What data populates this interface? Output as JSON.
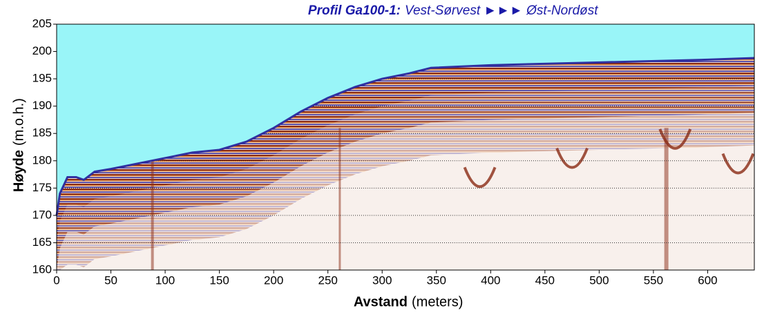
{
  "chart_data": {
    "type": "area",
    "title_parts": [
      "Profil Ga100-1:",
      "Vest-Sørvest ►►► Øst-Nordøst"
    ],
    "ylabel_parts": [
      "Høyde",
      "(m.o.h.)"
    ],
    "xlabel_parts": [
      "Avstand",
      "(meters)"
    ],
    "x": [
      0,
      3,
      10,
      18,
      25,
      35,
      50,
      75,
      100,
      125,
      150,
      175,
      200,
      225,
      250,
      275,
      300,
      325,
      345,
      400,
      500,
      600,
      643
    ],
    "values": [
      170,
      174,
      177,
      177,
      176.5,
      178,
      178.5,
      179.5,
      180.5,
      181.5,
      182,
      183.5,
      186,
      189,
      191.5,
      193.5,
      195,
      196,
      197,
      197.5,
      198,
      198.5,
      198.8
    ],
    "color": "#99f5f8",
    "xlim": [
      0,
      643
    ],
    "ylim": [
      160,
      205
    ],
    "xticks": [
      0,
      50,
      100,
      150,
      200,
      250,
      300,
      350,
      400,
      450,
      500,
      550,
      600
    ],
    "yticks": [
      160,
      165,
      170,
      175,
      180,
      185,
      190,
      195,
      200,
      205
    ],
    "grid": true
  }
}
